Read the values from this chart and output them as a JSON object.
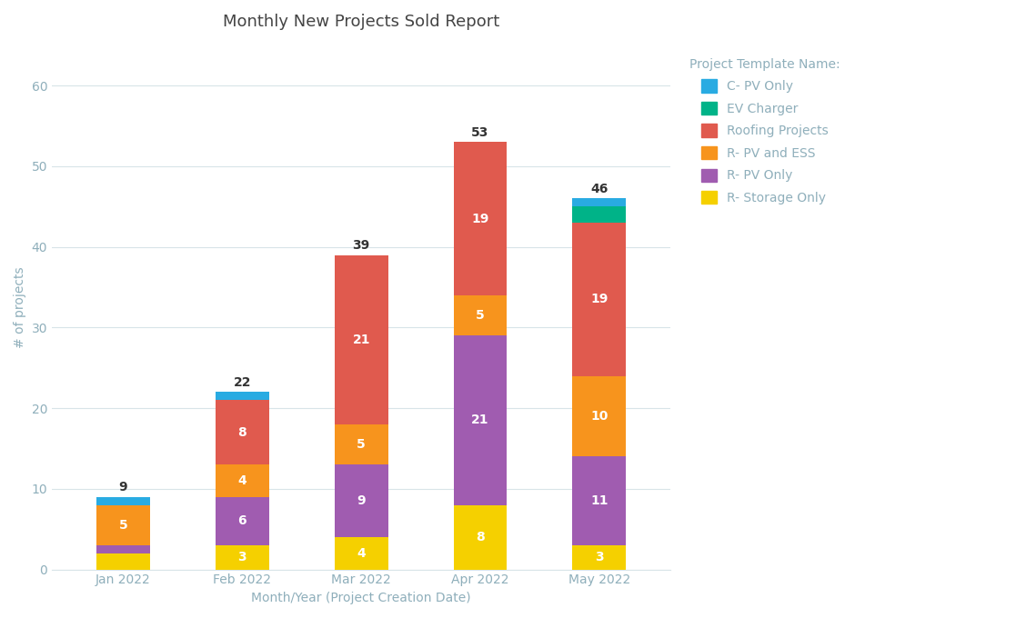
{
  "title": "Monthly New Projects Sold Report",
  "xlabel": "Month/Year (Project Creation Date)",
  "ylabel": "# of projects",
  "categories": [
    "Jan 2022",
    "Feb 2022",
    "Mar 2022",
    "Apr 2022",
    "May 2022"
  ],
  "totals": [
    9,
    22,
    39,
    53,
    46
  ],
  "series_order": [
    "R- Storage Only",
    "R- PV Only",
    "R- PV and ESS",
    "Roofing Projects",
    "EV Charger",
    "C- PV Only"
  ],
  "series": {
    "R- Storage Only": {
      "values": [
        2,
        3,
        4,
        8,
        3
      ],
      "color": "#F5D000"
    },
    "R- PV Only": {
      "values": [
        1,
        6,
        9,
        21,
        11
      ],
      "color": "#A05CB0"
    },
    "R- PV and ESS": {
      "values": [
        5,
        4,
        5,
        5,
        10
      ],
      "color": "#F7941D"
    },
    "Roofing Projects": {
      "values": [
        0,
        8,
        21,
        19,
        19
      ],
      "color": "#E05A4E"
    },
    "EV Charger": {
      "values": [
        0,
        0,
        0,
        0,
        2
      ],
      "color": "#00B388"
    },
    "C- PV Only": {
      "values": [
        1,
        1,
        0,
        0,
        1
      ],
      "color": "#29ABE2"
    }
  },
  "legend_order": [
    "C- PV Only",
    "EV Charger",
    "Roofing Projects",
    "R- PV and ESS",
    "R- PV Only",
    "R- Storage Only"
  ],
  "legend_title": "Project Template Name:",
  "background_color": "#FFFFFF",
  "ylim": [
    0,
    65
  ],
  "yticks": [
    0,
    10,
    20,
    30,
    40,
    50,
    60
  ],
  "bar_width": 0.45,
  "title_fontsize": 13,
  "axis_label_fontsize": 10,
  "tick_fontsize": 10,
  "legend_fontsize": 10,
  "value_label_color_inside": "#FFFFFF",
  "value_label_fontsize": 10,
  "total_label_fontsize": 10,
  "total_label_color": "#333333",
  "grid_color": "#D8E4E8",
  "tick_color": "#8FAFBB",
  "title_color": "#444444"
}
